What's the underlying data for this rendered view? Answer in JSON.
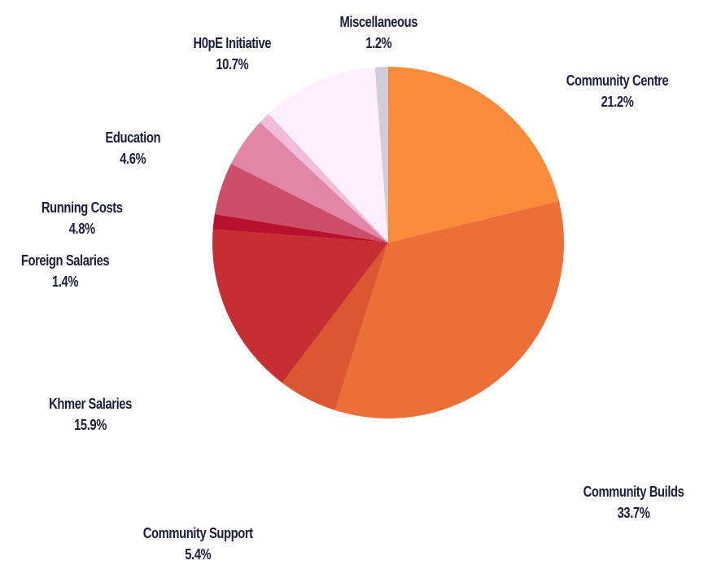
{
  "chart_data": {
    "type": "pie",
    "start_angle": "12 o'clock",
    "direction": "clockwise",
    "slices": [
      {
        "label": "Community Centre",
        "value_label": "21.2%",
        "value": 21.2,
        "color": "#fa8b39"
      },
      {
        "label": "Community Builds",
        "value_label": "33.7%",
        "value": 33.7,
        "color": "#ec6f37"
      },
      {
        "label": "Community Support",
        "value_label": "5.4%",
        "value": 5.4,
        "color": "#dc5632"
      },
      {
        "label": "Khmer Salaries",
        "value_label": "15.9%",
        "value": 15.9,
        "color": "#c62e31"
      },
      {
        "label": "Foreign Salaries",
        "value_label": "1.4%",
        "value": 1.4,
        "color": "#b9122f"
      },
      {
        "label": "Running Costs",
        "value_label": "4.8%",
        "value": 4.8,
        "color": "#ce4d69"
      },
      {
        "label": "Education",
        "value_label": "4.6%",
        "value": 4.6,
        "color": "#e086a7"
      },
      {
        "label": "",
        "value_label": "",
        "value": 1.1,
        "color": "#f0bcd9"
      },
      {
        "label": "H0pE Initiative",
        "value_label": "10.7%",
        "value": 10.7,
        "color": "#ffeefe"
      },
      {
        "label": "Miscellaneous",
        "value_label": "1.2%",
        "value": 1.2,
        "color": "#d2cbdc"
      }
    ],
    "label_color": "#1b1e3d",
    "legend": "none"
  }
}
